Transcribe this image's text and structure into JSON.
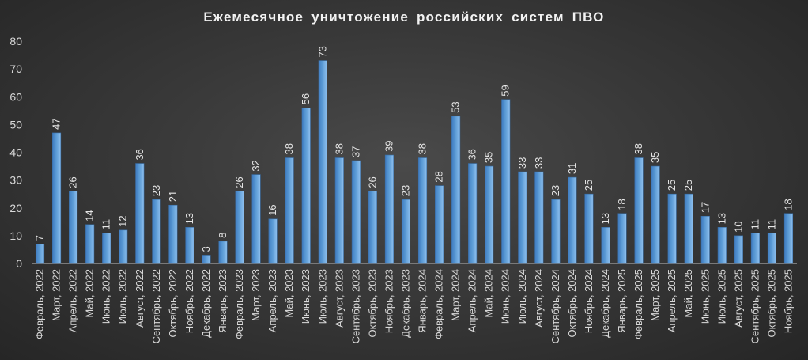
{
  "chart_data": {
    "type": "bar",
    "title": "Ежемесячное уничтожение российских систем ПВО",
    "xlabel": "",
    "ylabel": "",
    "ylim": [
      0,
      80
    ],
    "yticks": [
      0,
      10,
      20,
      30,
      40,
      50,
      60,
      70,
      80
    ],
    "grid": false,
    "data_labels": true,
    "bar_color": "#5b9bd5",
    "categories": [
      "Февраль, 2022",
      "Март, 2022",
      "Апрель, 2022",
      "Май, 2022",
      "Июнь, 2022",
      "Июль, 2022",
      "Август, 2022",
      "Сентябрь, 2022",
      "Октябрь, 2022",
      "Ноябрь, 2022",
      "Декабрь, 2022",
      "Январь, 2023",
      "Февраль, 2023",
      "Март, 2023",
      "Апрель, 2023",
      "Май, 2023",
      "Июнь, 2023",
      "Июль, 2023",
      "Август, 2023",
      "Сентябрь, 2023",
      "Октябрь, 2023",
      "Ноябрь, 2023",
      "Декабрь, 2023",
      "Январь, 2024",
      "Февраль, 2024",
      "Март, 2024",
      "Апрель, 2024",
      "Май, 2024",
      "Июнь, 2024",
      "Июль, 2024",
      "Август, 2024",
      "Сентябрь, 2024",
      "Октябрь, 2024",
      "Ноябрь, 2024",
      "Декабрь, 2024",
      "Январь, 2025",
      "Февраль, 2025",
      "Март, 2025",
      "Апрель, 2025",
      "Май, 2025",
      "Июнь, 2025",
      "Июль, 2025",
      "Август, 2025",
      "Сентябрь, 2025",
      "Октябрь, 2025",
      "Ноябрь, 2025"
    ],
    "values": [
      7,
      47,
      26,
      14,
      11,
      12,
      36,
      23,
      21,
      13,
      3,
      8,
      26,
      32,
      16,
      38,
      56,
      73,
      38,
      37,
      26,
      39,
      23,
      38,
      28,
      53,
      36,
      35,
      59,
      33,
      33,
      23,
      31,
      25,
      13,
      18,
      38,
      35,
      25,
      25,
      17,
      13,
      10,
      11,
      11,
      18
    ]
  }
}
